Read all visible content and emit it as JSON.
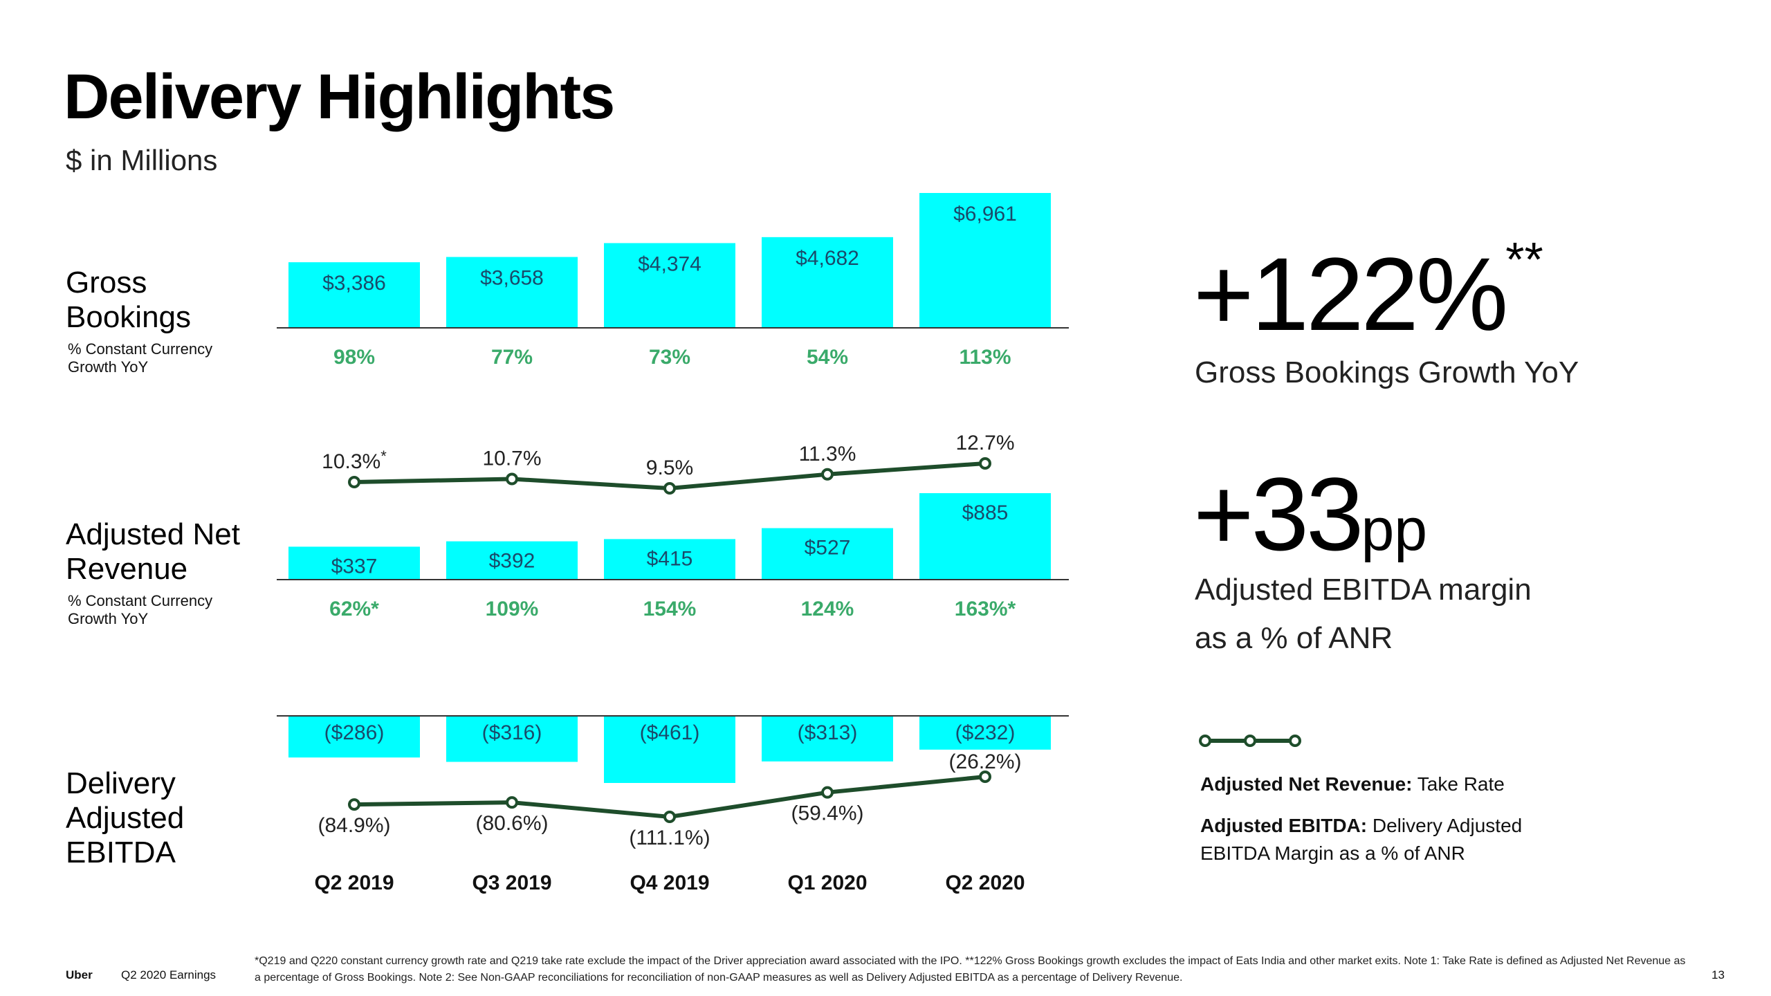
{
  "page": {
    "title": "Delivery Highlights",
    "subtitle": "$ in Millions",
    "footer_brand": "Uber",
    "footer_report": "Q2 2020 Earnings",
    "page_number": "13",
    "footnote": "*Q219 and Q220 constant currency growth rate and Q219 take rate exclude the impact of the Driver appreciation award associated with the IPO. **122% Gross Bookings growth excludes the impact of Eats India and other market exits. Note 1: Take Rate is defined as Adjusted Net Revenue as a percentage of Gross Bookings. Note 2: See Non-GAAP reconciliations for reconciliation of non-GAAP measures as well as Delivery Adjusted EBITDA as a percentage of Delivery Revenue."
  },
  "rows": {
    "gross": {
      "line1": "Gross",
      "line2": "Bookings",
      "sub1": "% Constant Currency",
      "sub2": "Growth YoY"
    },
    "anr": {
      "line1": "Adjusted Net",
      "line2": "Revenue",
      "sub1": "% Constant Currency",
      "sub2": "Growth YoY"
    },
    "ebitda": {
      "line1": "Delivery",
      "line2": "Adjusted",
      "line3": "EBITDA"
    }
  },
  "highlights": {
    "gb_growth": "+122%",
    "gb_growth_mark": "**",
    "gb_growth_label": "Gross Bookings Growth YoY",
    "margin_change": "+33",
    "margin_unit": "pp",
    "margin_label_1": "Adjusted EBITDA margin",
    "margin_label_2": "as a % of ANR"
  },
  "legend": {
    "anr_title": "Adjusted Net Revenue:",
    "anr_desc": "Take Rate",
    "ebitda_title": "Adjusted EBITDA:",
    "ebitda_desc_1": "Delivery Adjusted",
    "ebitda_desc_2": "EBITDA Margin as a % of ANR"
  },
  "colors": {
    "bar": "#00FFFF",
    "growth_text": "#3AAA6A",
    "line": "#1E4D2B",
    "bar_text": "#1A4A6A",
    "axis": "#333333"
  },
  "chart_data": [
    {
      "type": "bar",
      "title": "Gross Bookings",
      "categories": [
        "Q2 2019",
        "Q3 2019",
        "Q4 2019",
        "Q1 2020",
        "Q2 2020"
      ],
      "values": [
        3386,
        3658,
        4374,
        4682,
        6961
      ],
      "value_labels": [
        "$3,386",
        "$3,658",
        "$4,374",
        "$4,682",
        "$6,961"
      ],
      "growth_label": "% Constant Currency Growth YoY",
      "growth_labels": [
        "98%",
        "77%",
        "73%",
        "54%",
        "113%"
      ]
    },
    {
      "type": "bar",
      "title": "Adjusted Net Revenue",
      "categories": [
        "Q2 2019",
        "Q3 2019",
        "Q4 2019",
        "Q1 2020",
        "Q2 2020"
      ],
      "values": [
        337,
        392,
        415,
        527,
        885
      ],
      "value_labels": [
        "$337",
        "$392",
        "$415",
        "$527",
        "$885"
      ],
      "growth_labels": [
        "62%*",
        "109%",
        "154%",
        "124%",
        "163%*"
      ]
    },
    {
      "type": "line",
      "title": "Take Rate",
      "categories": [
        "Q2 2019",
        "Q3 2019",
        "Q4 2019",
        "Q1 2020",
        "Q2 2020"
      ],
      "values": [
        10.3,
        10.7,
        9.5,
        11.3,
        12.7
      ],
      "value_labels": [
        "10.3%",
        "10.7%",
        "9.5%",
        "11.3%",
        "12.7%"
      ],
      "value_marks": [
        "*",
        "",
        "",
        "",
        ""
      ]
    },
    {
      "type": "bar",
      "title": "Delivery Adjusted EBITDA",
      "categories": [
        "Q2 2019",
        "Q3 2019",
        "Q4 2019",
        "Q1 2020",
        "Q2 2020"
      ],
      "values": [
        -286,
        -316,
        -461,
        -313,
        -232
      ],
      "value_labels": [
        "($286)",
        "($316)",
        "($461)",
        "($313)",
        "($232)"
      ]
    },
    {
      "type": "line",
      "title": "Delivery Adjusted EBITDA Margin as a % of ANR",
      "categories": [
        "Q2 2019",
        "Q3 2019",
        "Q4 2019",
        "Q1 2020",
        "Q2 2020"
      ],
      "values": [
        -84.9,
        -80.6,
        -111.1,
        -59.4,
        -26.2
      ],
      "value_labels": [
        "(84.9%)",
        "(80.6%)",
        "(111.1%)",
        "(59.4%)",
        "(26.2%)"
      ]
    }
  ]
}
